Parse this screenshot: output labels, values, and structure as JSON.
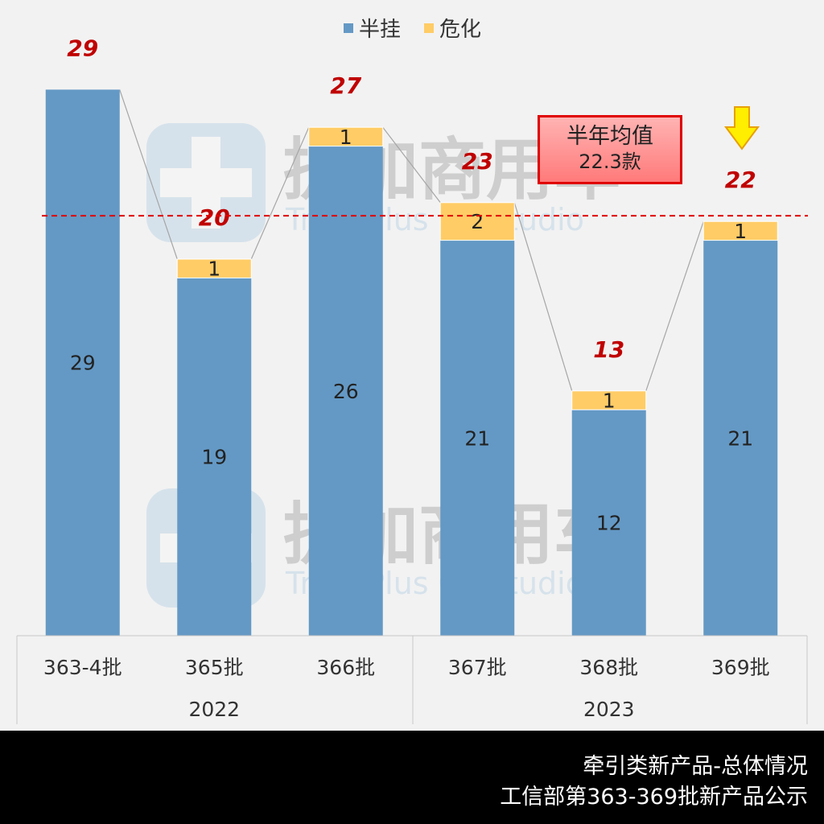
{
  "chart_data": {
    "type": "bar",
    "stacked": true,
    "categories": [
      "363-4批",
      "365批",
      "366批",
      "367批",
      "368批",
      "369批"
    ],
    "groups": [
      {
        "label": "2022",
        "categories": [
          "363-4批",
          "365批",
          "366批"
        ]
      },
      {
        "label": "2023",
        "categories": [
          "367批",
          "368批",
          "369批"
        ]
      }
    ],
    "series": [
      {
        "name": "半挂",
        "values": [
          29,
          19,
          26,
          21,
          12,
          21
        ],
        "color": "#6499c5"
      },
      {
        "name": "危化",
        "values": [
          0,
          1,
          1,
          2,
          1,
          1
        ],
        "color": "#ffcc66"
      }
    ],
    "totals": [
      29,
      20,
      27,
      23,
      13,
      22
    ],
    "average": {
      "value": 22.3,
      "line_color": "#e00000",
      "label_line1": "半年均值",
      "label_line2": "22.3款"
    },
    "legend_position": "top",
    "grid": false,
    "ylim": [
      0,
      29
    ],
    "highlight_category": "369批",
    "total_label_color": "#c00000"
  },
  "footer": {
    "line1": "牵引类新产品-总体情况",
    "line2": "工信部第363-369批新产品公示"
  },
  "watermark": {
    "title": "提加商用车",
    "subtitle": "TruckPlus CV studio"
  },
  "icons": {
    "highlight_arrow": "down-arrow-icon",
    "watermark_logo": "truckplus-logo-icon"
  }
}
